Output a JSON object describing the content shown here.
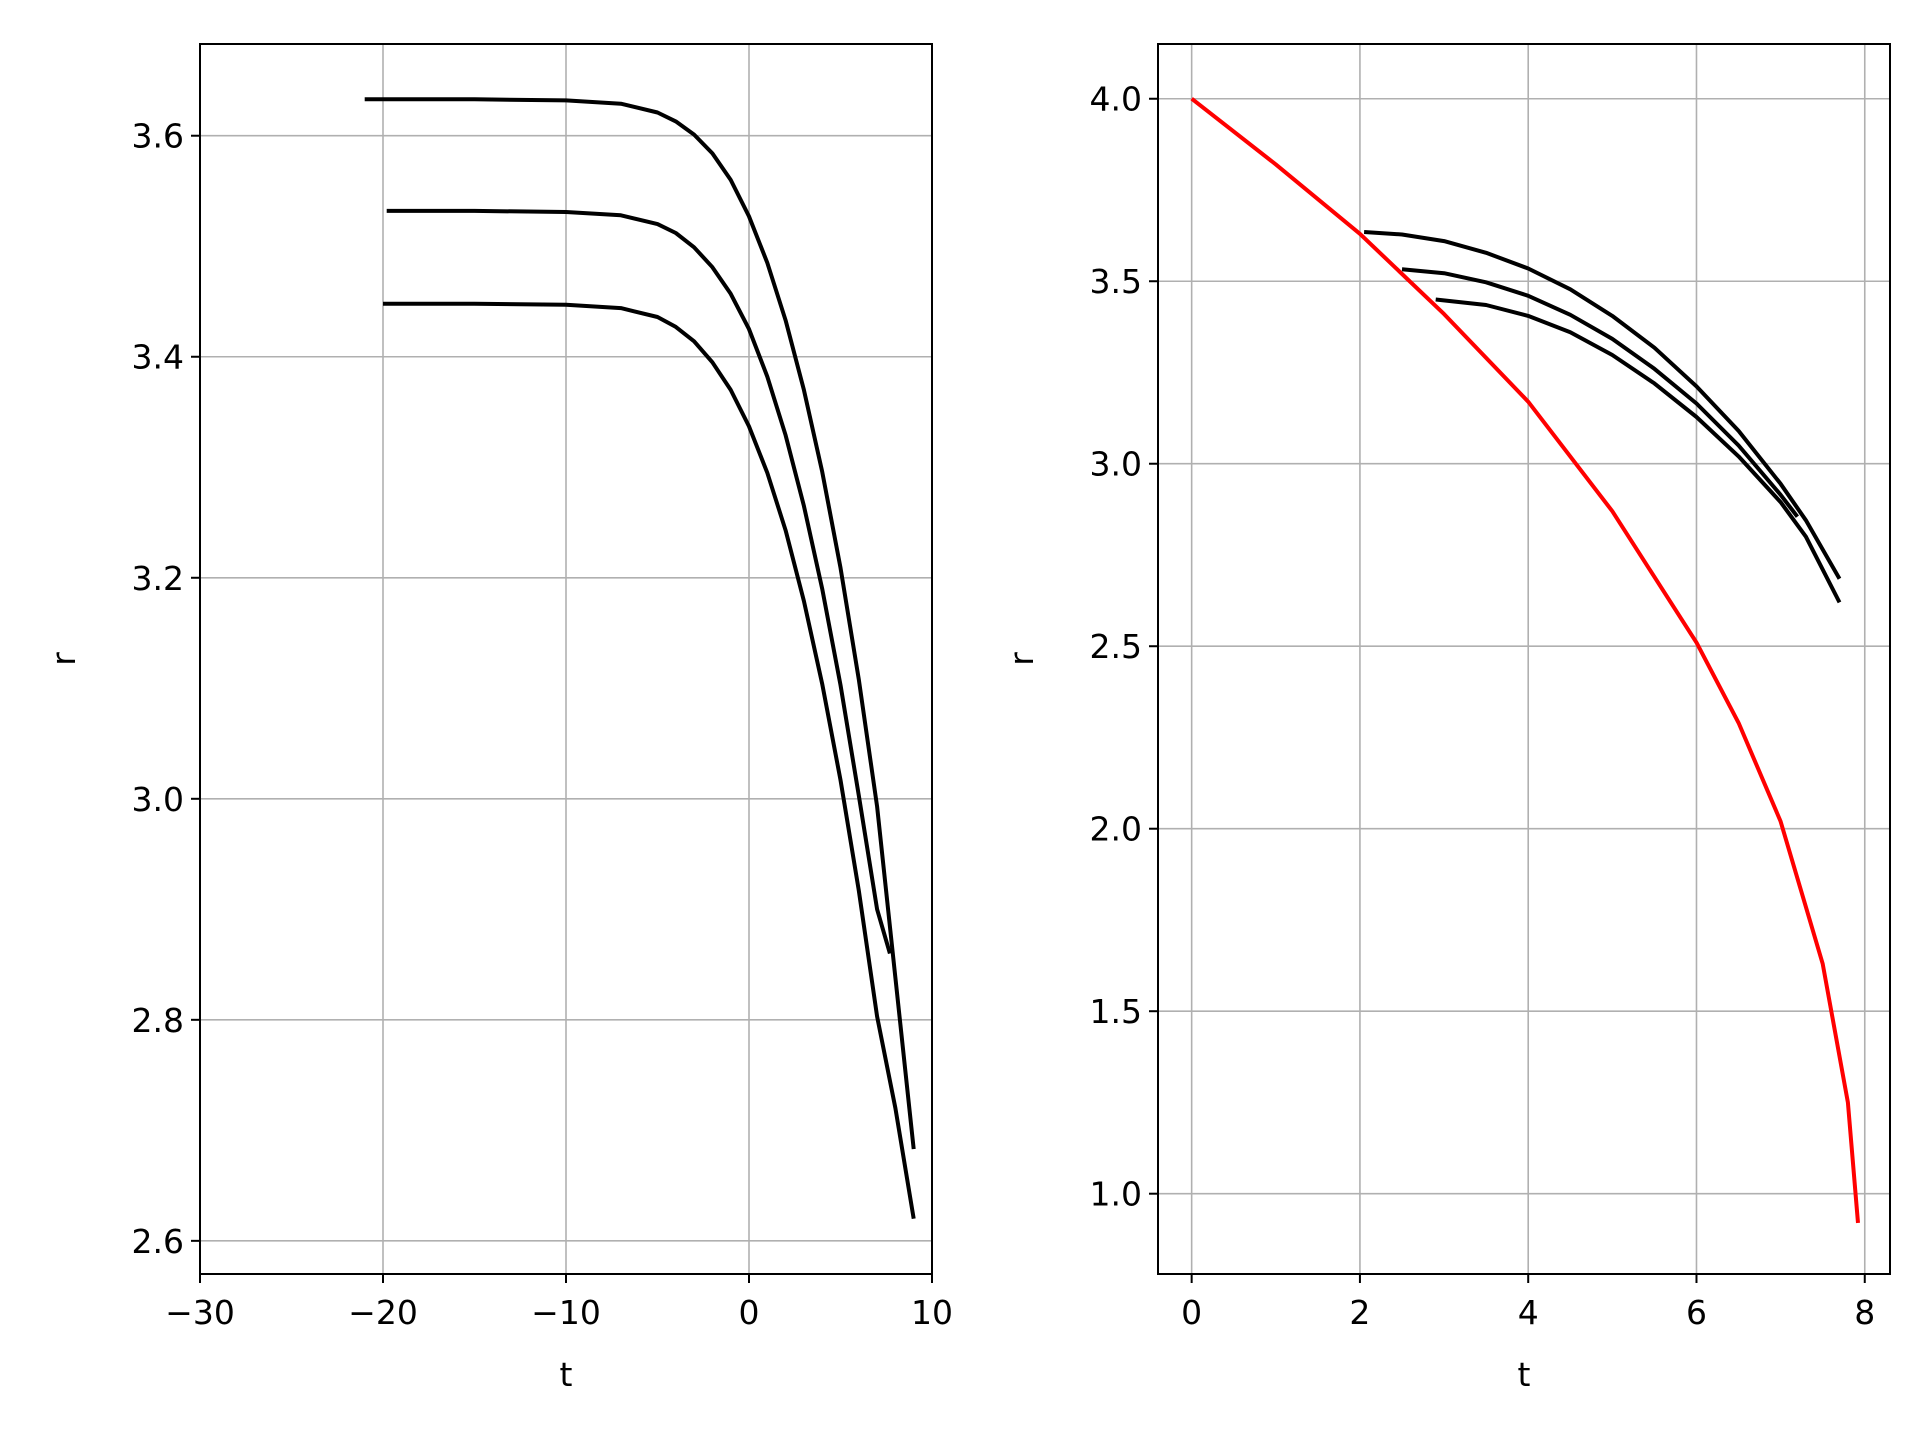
{
  "chart_data": [
    {
      "type": "line",
      "title": "",
      "xlabel": "t",
      "ylabel": "r",
      "xlim": [
        -30,
        10
      ],
      "ylim": [
        2.57,
        3.683
      ],
      "grid": true,
      "xticks": [
        -30,
        -20,
        -10,
        0,
        10
      ],
      "xtick_labels": [
        "−30",
        "−20",
        "−10",
        "0",
        "10"
      ],
      "yticks": [
        2.6,
        2.8,
        3.0,
        3.2,
        3.4,
        3.6
      ],
      "ytick_labels": [
        "2.6",
        "2.8",
        "3.0",
        "3.2",
        "3.4",
        "3.6"
      ],
      "series": [
        {
          "color": "#000000",
          "x": [
            -21,
            -15,
            -10,
            -7,
            -5,
            -4,
            -3,
            -2,
            -1,
            0,
            1,
            2,
            3,
            4,
            5,
            6,
            7,
            8,
            9
          ],
          "y": [
            3.633,
            3.633,
            3.632,
            3.629,
            3.621,
            3.613,
            3.601,
            3.584,
            3.56,
            3.527,
            3.485,
            3.433,
            3.37,
            3.296,
            3.209,
            3.108,
            2.993,
            2.838,
            2.683
          ]
        },
        {
          "color": "#000000",
          "x": [
            -19.8,
            -15,
            -10,
            -7,
            -5,
            -4,
            -3,
            -2,
            -1,
            0,
            1,
            2,
            3,
            4,
            5,
            6,
            7,
            7.7
          ],
          "y": [
            3.532,
            3.532,
            3.531,
            3.528,
            3.52,
            3.512,
            3.499,
            3.481,
            3.457,
            3.425,
            3.382,
            3.329,
            3.265,
            3.19,
            3.103,
            3.003,
            2.9,
            2.86
          ]
        },
        {
          "color": "#000000",
          "x": [
            -20,
            -15,
            -10,
            -7,
            -5,
            -4,
            -3,
            -2,
            -1,
            0,
            1,
            2,
            3,
            4,
            5,
            6,
            7,
            8,
            9
          ],
          "y": [
            3.448,
            3.448,
            3.447,
            3.444,
            3.436,
            3.427,
            3.414,
            3.395,
            3.37,
            3.337,
            3.295,
            3.243,
            3.179,
            3.104,
            3.017,
            2.917,
            2.803,
            2.72,
            2.62
          ]
        }
      ]
    },
    {
      "type": "line",
      "title": "",
      "xlabel": "t",
      "ylabel": "r",
      "xlim": [
        -0.4,
        8.3
      ],
      "ylim": [
        0.78,
        4.15
      ],
      "grid": true,
      "xticks": [
        0,
        2,
        4,
        6,
        8
      ],
      "xtick_labels": [
        "0",
        "2",
        "4",
        "6",
        "8"
      ],
      "yticks": [
        1.0,
        1.5,
        2.0,
        2.5,
        3.0,
        3.5,
        4.0
      ],
      "ytick_labels": [
        "1.0",
        "1.5",
        "2.0",
        "2.5",
        "3.0",
        "3.5",
        "4.0"
      ],
      "series": [
        {
          "color": "#ff0000",
          "x": [
            0,
            1,
            2,
            3,
            4,
            5,
            6,
            6.5,
            7,
            7.5,
            7.8,
            7.92
          ],
          "y": [
            4.0,
            3.82,
            3.63,
            3.41,
            3.17,
            2.87,
            2.51,
            2.29,
            2.02,
            1.63,
            1.25,
            0.92
          ]
        },
        {
          "color": "#000000",
          "x": [
            2.05,
            2.5,
            3,
            3.5,
            4,
            4.5,
            5,
            5.5,
            6,
            6.5,
            7,
            7.3,
            7.7
          ],
          "y": [
            3.635,
            3.628,
            3.61,
            3.578,
            3.535,
            3.478,
            3.405,
            3.318,
            3.212,
            3.09,
            2.945,
            2.845,
            2.685
          ]
        },
        {
          "color": "#000000",
          "x": [
            2.5,
            3,
            3.5,
            4,
            4.5,
            5,
            5.5,
            6,
            6.5,
            7,
            7.2
          ],
          "y": [
            3.533,
            3.522,
            3.497,
            3.46,
            3.408,
            3.342,
            3.26,
            3.165,
            3.05,
            2.915,
            2.855
          ]
        },
        {
          "color": "#000000",
          "x": [
            2.9,
            3.5,
            4,
            4.5,
            5,
            5.5,
            6,
            6.5,
            7,
            7.3,
            7.7
          ],
          "y": [
            3.45,
            3.435,
            3.405,
            3.36,
            3.298,
            3.22,
            3.128,
            3.02,
            2.895,
            2.8,
            2.62
          ]
        }
      ]
    }
  ]
}
